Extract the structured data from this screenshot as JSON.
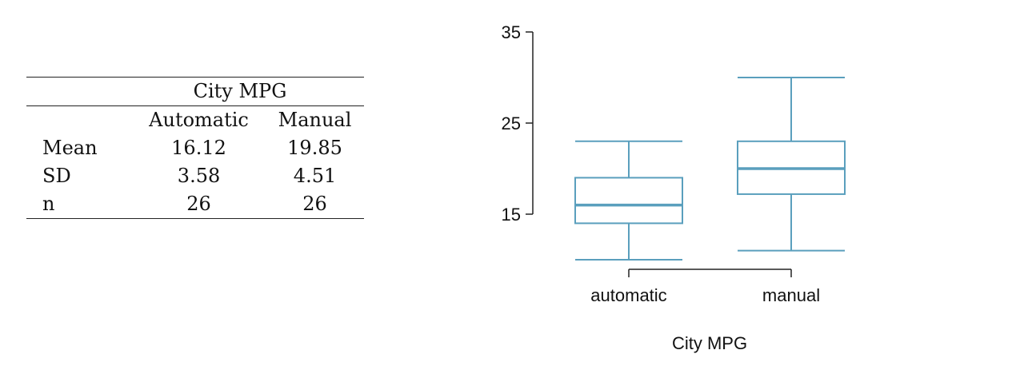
{
  "table": {
    "group_header": "City MPG",
    "columns": [
      "Automatic",
      "Manual"
    ],
    "rows": [
      {
        "label": "Mean",
        "automatic": "16.12",
        "manual": "19.85"
      },
      {
        "label": "SD",
        "automatic": "3.58",
        "manual": "4.51"
      },
      {
        "label": "n",
        "automatic": "26",
        "manual": "26"
      }
    ]
  },
  "chart_data": {
    "type": "box",
    "categories": [
      "automatic",
      "manual"
    ],
    "boxes": [
      {
        "name": "automatic",
        "min": 10,
        "q1": 14,
        "median": 16,
        "q3": 19,
        "max": 23
      },
      {
        "name": "manual",
        "min": 11,
        "q1": 17.2,
        "median": 20,
        "q3": 23,
        "max": 30
      }
    ],
    "xlabel": "City MPG",
    "ylabel": "",
    "yticks": [
      15,
      25,
      35
    ],
    "ylim": [
      10,
      35
    ],
    "color": "#5a9fbd",
    "axis_color": "#222222"
  }
}
